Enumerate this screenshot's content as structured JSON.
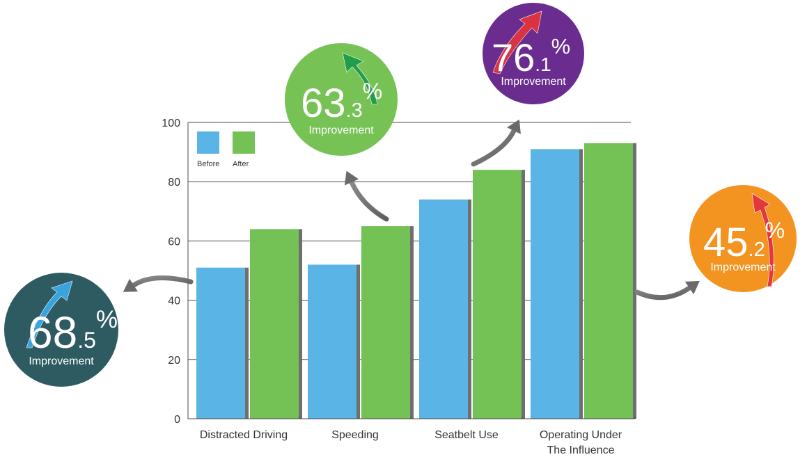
{
  "chart_data": {
    "type": "bar",
    "categories": [
      "Distracted Driving",
      "Speeding",
      "Seatbelt Use",
      "Operating Under The Influence"
    ],
    "category_label_lines": [
      [
        "Distracted Driving"
      ],
      [
        "Speeding"
      ],
      [
        "Seatbelt Use"
      ],
      [
        "Operating Under",
        "The Influence"
      ]
    ],
    "series": [
      {
        "name": "Before",
        "color": "#5ab4e6",
        "values": [
          51,
          52,
          74,
          91
        ]
      },
      {
        "name": "After",
        "color": "#74c255",
        "values": [
          64,
          65,
          84,
          93
        ]
      }
    ],
    "ylim": [
      0,
      100
    ],
    "yticks": [
      0,
      20,
      40,
      60,
      80,
      100
    ],
    "grid": true,
    "legend_position": "top-left",
    "xlabel": "",
    "ylabel": "",
    "title": ""
  },
  "badges": [
    {
      "category": "Distracted Driving",
      "main": "68",
      "sub": ".5",
      "percent": "%",
      "label": "Improvement",
      "color": "#2e5b62",
      "arrow_color": "#3aa7e4"
    },
    {
      "category": "Speeding",
      "main": "63",
      "sub": ".3",
      "percent": "%",
      "label": "Improvement",
      "color": "#76c254",
      "arrow_color": "#1e9a4a"
    },
    {
      "category": "Seatbelt Use",
      "main": "76",
      "sub": ".1",
      "percent": "%",
      "label": "Improvement",
      "color": "#6a2c8f",
      "arrow_color": "#e2333d"
    },
    {
      "category": "Operating Under The Influence",
      "main": "45",
      "sub": ".2",
      "percent": "%",
      "label": "Improvement",
      "color": "#f39320",
      "arrow_color": "#e2333d"
    }
  ]
}
